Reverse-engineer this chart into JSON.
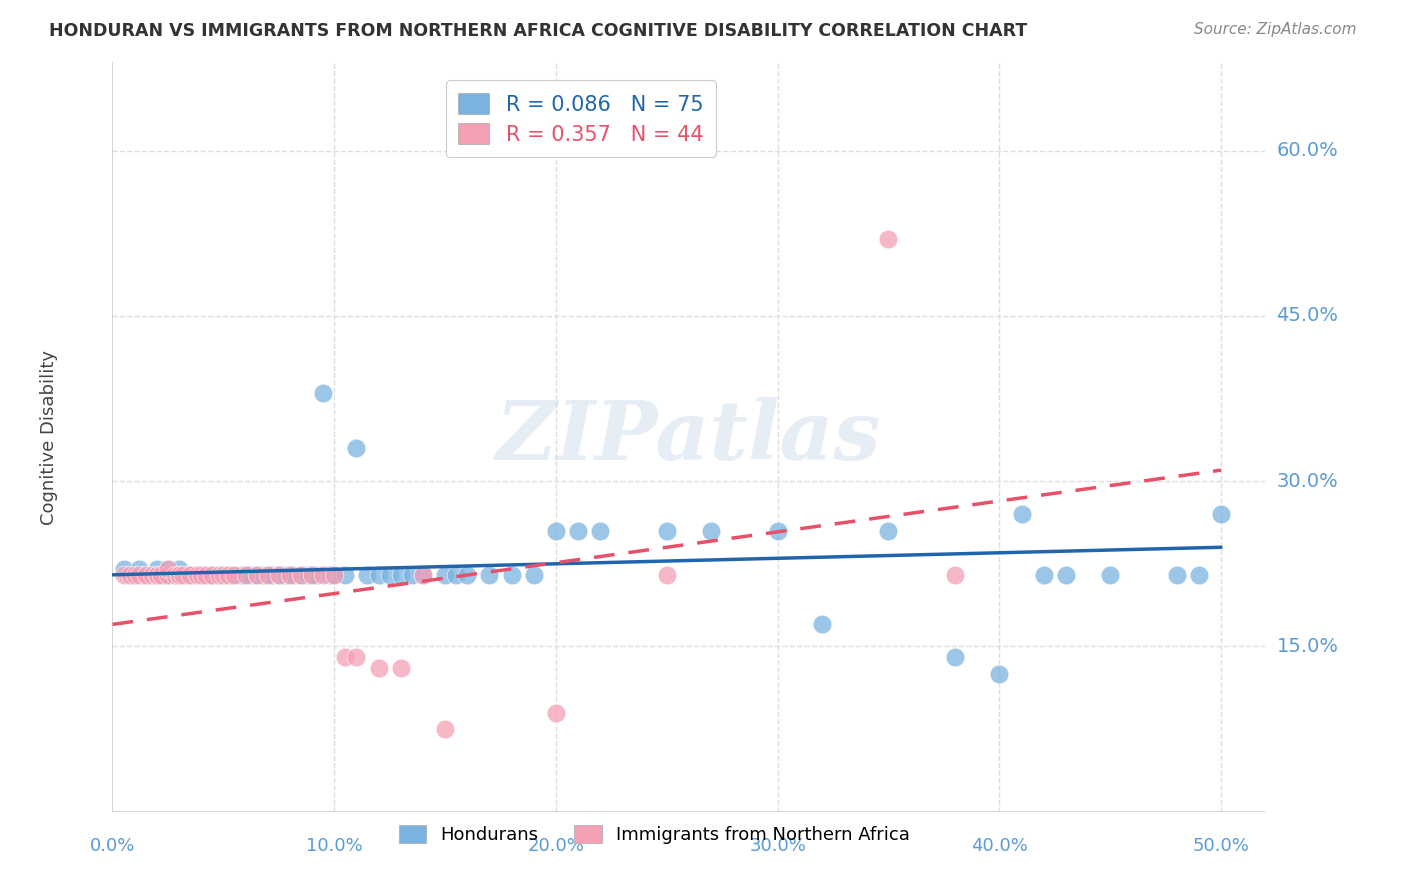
{
  "title": "HONDURAN VS IMMIGRANTS FROM NORTHERN AFRICA COGNITIVE DISABILITY CORRELATION CHART",
  "source": "Source: ZipAtlas.com",
  "ylabel": "Cognitive Disability",
  "xlim": [
    0.0,
    0.52
  ],
  "ylim": [
    0.0,
    0.68
  ],
  "yticks": [
    0.15,
    0.3,
    0.45,
    0.6
  ],
  "ytick_labels": [
    "15.0%",
    "30.0%",
    "45.0%",
    "60.0%"
  ],
  "xticks": [
    0.0,
    0.1,
    0.2,
    0.3,
    0.4,
    0.5
  ],
  "xtick_labels": [
    "0.0%",
    "10.0%",
    "20.0%",
    "30.0%",
    "40.0%",
    "50.0%"
  ],
  "honduran_color": "#7ab3e0",
  "northern_africa_color": "#f4a0b5",
  "line_color_honduran": "#2166ac",
  "line_color_northern_africa": "#e8506a",
  "R_honduran": 0.086,
  "N_honduran": 75,
  "R_northern_africa": 0.357,
  "N_northern_africa": 44,
  "legend_label_honduran": "Hondurans",
  "legend_label_northern_africa": "Immigrants from Northern Africa",
  "watermark": "ZIPatlas",
  "background_color": "#ffffff",
  "grid_color": "#dddddd",
  "tick_color": "#5b9bd5",
  "honduran_x": [
    0.005,
    0.007,
    0.01,
    0.012,
    0.015,
    0.015,
    0.018,
    0.02,
    0.022,
    0.025,
    0.025,
    0.028,
    0.03,
    0.03,
    0.032,
    0.035,
    0.035,
    0.038,
    0.04,
    0.042,
    0.045,
    0.045,
    0.048,
    0.05,
    0.052,
    0.055,
    0.058,
    0.06,
    0.062,
    0.065,
    0.068,
    0.07,
    0.072,
    0.075,
    0.078,
    0.08,
    0.082,
    0.085,
    0.088,
    0.09,
    0.092,
    0.095,
    0.098,
    0.1,
    0.105,
    0.11,
    0.115,
    0.12,
    0.125,
    0.13,
    0.135,
    0.14,
    0.15,
    0.155,
    0.16,
    0.17,
    0.18,
    0.19,
    0.2,
    0.21,
    0.22,
    0.25,
    0.27,
    0.3,
    0.32,
    0.35,
    0.38,
    0.4,
    0.41,
    0.42,
    0.43,
    0.45,
    0.48,
    0.49,
    0.5
  ],
  "honduran_y": [
    0.22,
    0.215,
    0.215,
    0.22,
    0.215,
    0.215,
    0.215,
    0.22,
    0.215,
    0.215,
    0.22,
    0.215,
    0.215,
    0.22,
    0.215,
    0.215,
    0.215,
    0.215,
    0.215,
    0.215,
    0.215,
    0.215,
    0.215,
    0.215,
    0.215,
    0.215,
    0.215,
    0.215,
    0.215,
    0.215,
    0.215,
    0.215,
    0.215,
    0.215,
    0.215,
    0.215,
    0.215,
    0.215,
    0.215,
    0.215,
    0.215,
    0.38,
    0.215,
    0.215,
    0.215,
    0.33,
    0.215,
    0.215,
    0.215,
    0.215,
    0.215,
    0.215,
    0.215,
    0.215,
    0.215,
    0.215,
    0.215,
    0.215,
    0.255,
    0.255,
    0.255,
    0.255,
    0.255,
    0.255,
    0.17,
    0.255,
    0.14,
    0.125,
    0.27,
    0.215,
    0.215,
    0.215,
    0.215,
    0.215,
    0.27
  ],
  "africa_x": [
    0.005,
    0.008,
    0.01,
    0.012,
    0.015,
    0.015,
    0.018,
    0.02,
    0.02,
    0.022,
    0.025,
    0.025,
    0.028,
    0.03,
    0.03,
    0.032,
    0.035,
    0.038,
    0.04,
    0.042,
    0.045,
    0.048,
    0.05,
    0.052,
    0.055,
    0.06,
    0.065,
    0.07,
    0.075,
    0.08,
    0.085,
    0.09,
    0.095,
    0.1,
    0.105,
    0.11,
    0.12,
    0.13,
    0.14,
    0.15,
    0.2,
    0.25,
    0.35,
    0.38
  ],
  "africa_y": [
    0.215,
    0.215,
    0.215,
    0.215,
    0.215,
    0.215,
    0.215,
    0.215,
    0.215,
    0.215,
    0.215,
    0.22,
    0.215,
    0.215,
    0.215,
    0.215,
    0.215,
    0.215,
    0.215,
    0.215,
    0.215,
    0.215,
    0.215,
    0.215,
    0.215,
    0.215,
    0.215,
    0.215,
    0.215,
    0.215,
    0.215,
    0.215,
    0.215,
    0.215,
    0.14,
    0.14,
    0.13,
    0.13,
    0.215,
    0.075,
    0.09,
    0.215,
    0.52,
    0.215
  ],
  "honduran_line_x": [
    0.0,
    0.5
  ],
  "honduran_line_y": [
    0.215,
    0.24
  ],
  "africa_line_x": [
    0.0,
    0.5
  ],
  "africa_line_y": [
    0.17,
    0.31
  ]
}
